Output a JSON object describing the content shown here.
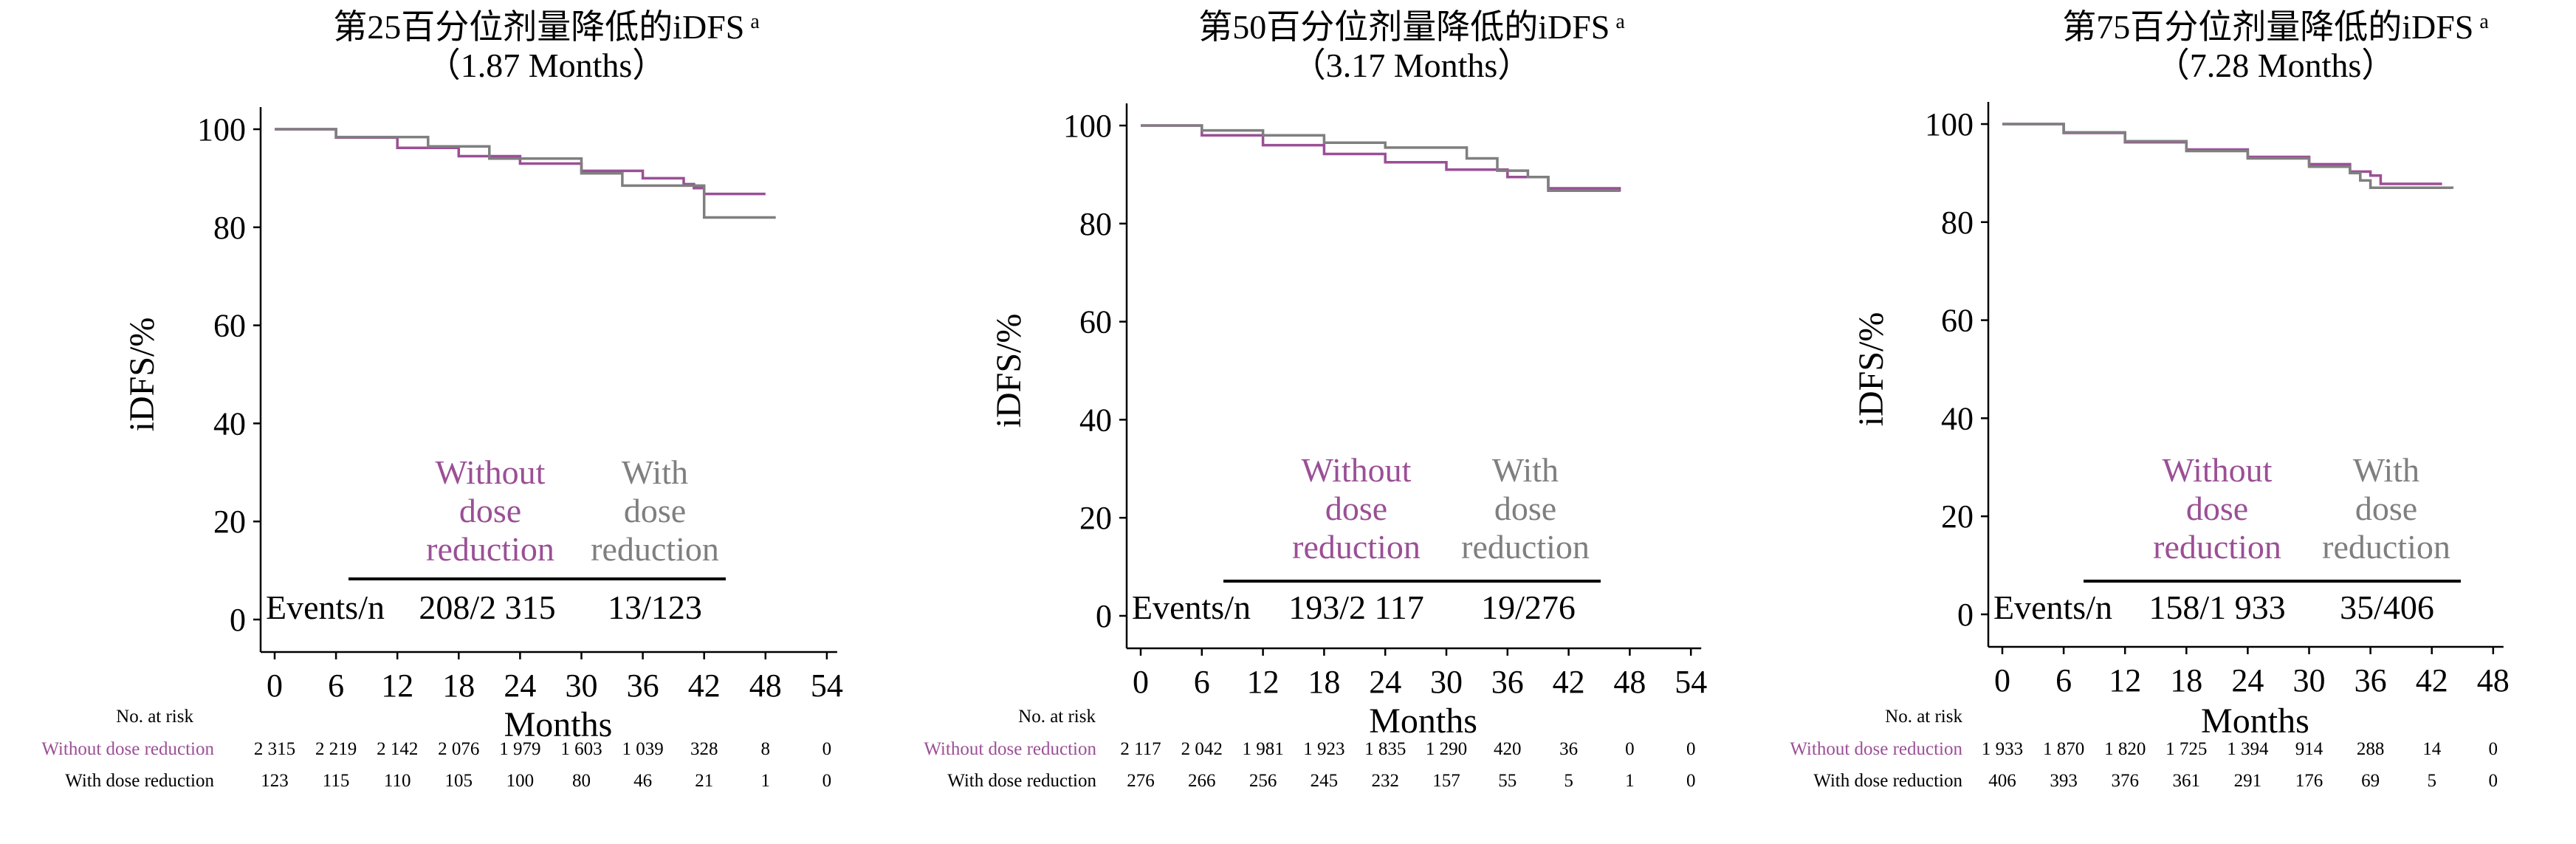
{
  "colors": {
    "without": "#9b4f96",
    "with": "#7f7f7f",
    "axis": "#000000"
  },
  "chart_data": [
    {
      "type": "line",
      "title": "第25百分位剂量降低的iDFS",
      "title_sup": "a",
      "subtitle": "（1.87 Months）",
      "xlabel": "Months",
      "ylabel": "iDFS/%",
      "xlim": [
        0,
        54
      ],
      "ylim": [
        0,
        100
      ],
      "xticks": [
        0,
        6,
        12,
        18,
        24,
        30,
        36,
        42,
        48,
        54
      ],
      "yticks": [
        0,
        20,
        40,
        60,
        80,
        100
      ],
      "legend_without": [
        "Without",
        "dose",
        "reduction"
      ],
      "legend_with": [
        "With",
        "dose",
        "reduction"
      ],
      "events_label": "Events/n",
      "events_without": "208/2 315",
      "events_with": "13/123",
      "series": [
        {
          "name": "Without dose reduction",
          "x": [
            0,
            6,
            12,
            18,
            24,
            30,
            36,
            40,
            41,
            42,
            48
          ],
          "y": [
            100,
            98.3,
            96.2,
            94.5,
            93,
            91.5,
            90,
            88.8,
            88,
            86.8,
            86.8
          ]
        },
        {
          "name": "With dose reduction",
          "x": [
            0,
            6,
            6,
            15,
            15,
            21,
            21,
            30,
            30,
            34,
            34,
            42,
            42,
            49
          ],
          "y": [
            100,
            100,
            98.4,
            98.4,
            96.5,
            96.5,
            94,
            94,
            91,
            91,
            88.5,
            88.5,
            82,
            82
          ]
        }
      ],
      "risk_table": {
        "header": "No. at risk",
        "rows": [
          {
            "label": "Without dose reduction",
            "values": [
              "2 315",
              "2 219",
              "2 142",
              "2 076",
              "1 979",
              "1 603",
              "1 039",
              "328",
              "8",
              "0"
            ]
          },
          {
            "label": "With dose reduction",
            "values": [
              "123",
              "115",
              "110",
              "105",
              "100",
              "80",
              "46",
              "21",
              "1",
              "0"
            ]
          }
        ]
      }
    },
    {
      "type": "line",
      "title": "第50百分位剂量降低的iDFS",
      "title_sup": "a",
      "subtitle": "（3.17 Months）",
      "xlabel": "Months",
      "ylabel": "iDFS/%",
      "xlim": [
        0,
        54
      ],
      "ylim": [
        0,
        100
      ],
      "xticks": [
        0,
        6,
        12,
        18,
        24,
        30,
        36,
        42,
        48,
        54
      ],
      "yticks": [
        0,
        20,
        40,
        60,
        80,
        100
      ],
      "legend_without": [
        "Without",
        "dose",
        "reduction"
      ],
      "legend_with": [
        "With",
        "dose",
        "reduction"
      ],
      "events_label": "Events/n",
      "events_without": "193/2 117",
      "events_with": "19/276",
      "series": [
        {
          "name": "Without dose reduction",
          "x": [
            0,
            6,
            12,
            18,
            24,
            30,
            36,
            40,
            47
          ],
          "y": [
            100,
            98,
            96,
            94.2,
            92.5,
            91,
            89.5,
            87.2,
            86.5
          ]
        },
        {
          "name": "With dose reduction",
          "x": [
            0,
            6,
            6,
            12,
            12,
            18,
            18,
            24,
            24,
            32,
            32,
            35,
            35,
            38,
            38,
            40,
            40,
            47
          ],
          "y": [
            100,
            100,
            99,
            99,
            98,
            98,
            96.5,
            96.5,
            95.5,
            95.5,
            93.3,
            93.3,
            90.8,
            90.8,
            89.5,
            89.5,
            86.7,
            86.7
          ]
        }
      ],
      "risk_table": {
        "header": "No. at risk",
        "rows": [
          {
            "label": "Without dose reduction",
            "values": [
              "2 117",
              "2 042",
              "1 981",
              "1 923",
              "1 835",
              "1 290",
              "420",
              "36",
              "0",
              "0"
            ]
          },
          {
            "label": "With dose reduction",
            "values": [
              "276",
              "266",
              "256",
              "245",
              "232",
              "157",
              "55",
              "5",
              "1",
              "0"
            ]
          }
        ]
      }
    },
    {
      "type": "line",
      "title": "第75百分位剂量降低的iDFS",
      "title_sup": "a",
      "subtitle": "（7.28 Months）",
      "xlabel": "Months",
      "ylabel": "iDFS/%",
      "xlim": [
        0,
        48
      ],
      "ylim": [
        0,
        100
      ],
      "xticks": [
        0,
        6,
        12,
        18,
        24,
        30,
        36,
        42,
        48
      ],
      "yticks": [
        0,
        20,
        40,
        60,
        80,
        100
      ],
      "legend_without": [
        "Without",
        "dose",
        "reduction"
      ],
      "legend_with": [
        "With",
        "dose",
        "reduction"
      ],
      "events_label": "Events/n",
      "events_without": "158/1 933",
      "events_with": "35/406",
      "series": [
        {
          "name": "Without dose reduction",
          "x": [
            0,
            6,
            12,
            18,
            24,
            30,
            34,
            36,
            37,
            43
          ],
          "y": [
            100,
            98.2,
            96.3,
            94.8,
            93.3,
            91.8,
            90.3,
            89.5,
            87.8,
            87.8
          ]
        },
        {
          "name": "With dose reduction",
          "x": [
            0,
            6,
            12,
            18,
            24,
            30,
            34,
            35,
            36,
            44
          ],
          "y": [
            100,
            98.3,
            96.5,
            94.5,
            93,
            91.3,
            90,
            88.5,
            87,
            86.8
          ]
        }
      ],
      "risk_table": {
        "header": "No. at risk",
        "rows": [
          {
            "label": "Without dose reduction",
            "values": [
              "1 933",
              "1 870",
              "1 820",
              "1 725",
              "1 394",
              "914",
              "288",
              "14",
              "0"
            ]
          },
          {
            "label": "With dose reduction",
            "values": [
              "406",
              "393",
              "376",
              "361",
              "291",
              "176",
              "69",
              "5",
              "0"
            ]
          }
        ]
      }
    }
  ]
}
